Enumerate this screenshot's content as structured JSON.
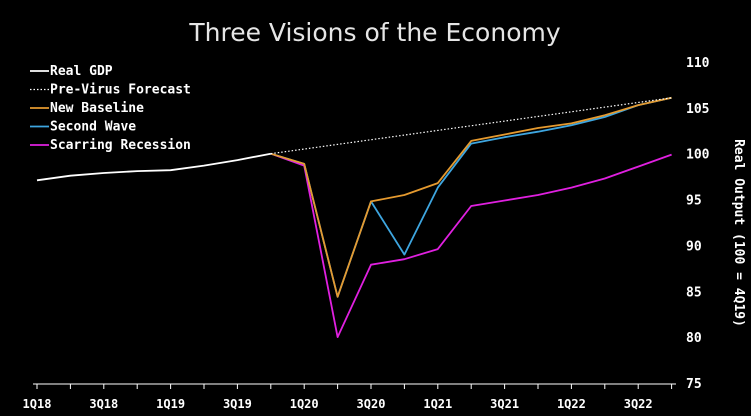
{
  "chart_data": {
    "type": "line",
    "title": "Three Visions of the Economy",
    "ylabel": "Real Output (100 = 4Q19)",
    "ylim": [
      75,
      110
    ],
    "yticks": [
      75,
      80,
      85,
      90,
      95,
      100,
      105,
      110
    ],
    "y_axis_side": "right",
    "legend_position": "top-left",
    "grid": false,
    "x_quarters": [
      "1Q18",
      "2Q18",
      "3Q18",
      "4Q18",
      "1Q19",
      "2Q19",
      "3Q19",
      "4Q19",
      "1Q20",
      "2Q20",
      "3Q20",
      "4Q20",
      "1Q21",
      "2Q21",
      "3Q21",
      "4Q21",
      "1Q22",
      "2Q22",
      "3Q22",
      "4Q22"
    ],
    "x_tick_labels": [
      "1Q18",
      "3Q18",
      "1Q19",
      "3Q19",
      "1Q20",
      "3Q20",
      "1Q21",
      "3Q21",
      "1Q22",
      "3Q22"
    ],
    "series": [
      {
        "name": "Real GDP",
        "color": "#ffffff",
        "style": "solid",
        "x": [
          "1Q18",
          "2Q18",
          "3Q18",
          "4Q18",
          "1Q19",
          "2Q19",
          "3Q19",
          "4Q19"
        ],
        "values": [
          97.1,
          97.6,
          97.9,
          98.1,
          98.2,
          98.7,
          99.3,
          100.0
        ]
      },
      {
        "name": "Pre-Virus Forecast",
        "color": "#ffffff",
        "style": "dotted",
        "x": [
          "4Q19",
          "4Q22"
        ],
        "values": [
          100.0,
          106.1
        ]
      },
      {
        "name": "New Baseline",
        "color": "#e59a2f",
        "style": "solid",
        "x": [
          "4Q19",
          "1Q20",
          "2Q20",
          "3Q20",
          "4Q20",
          "1Q21",
          "2Q21",
          "3Q21",
          "4Q21",
          "1Q22",
          "2Q22",
          "3Q22",
          "4Q22"
        ],
        "values": [
          100.0,
          98.9,
          84.4,
          94.8,
          95.5,
          96.8,
          101.4,
          102.1,
          102.8,
          103.3,
          104.2,
          105.3,
          106.1
        ]
      },
      {
        "name": "Second Wave",
        "color": "#3ea6e0",
        "style": "solid",
        "x": [
          "4Q19",
          "1Q20",
          "2Q20",
          "3Q20",
          "4Q20",
          "1Q21",
          "2Q21",
          "3Q21",
          "4Q21",
          "1Q22",
          "2Q22",
          "3Q22",
          "4Q22"
        ],
        "values": [
          100.0,
          98.9,
          84.4,
          94.8,
          89.0,
          96.3,
          101.1,
          101.8,
          102.4,
          103.1,
          104.0,
          105.3,
          106.1
        ]
      },
      {
        "name": "Scarring Recession",
        "color": "#e020e0",
        "style": "solid",
        "x": [
          "4Q19",
          "1Q20",
          "2Q20",
          "3Q20",
          "4Q20",
          "1Q21",
          "2Q21",
          "3Q21",
          "4Q21",
          "1Q22",
          "2Q22",
          "3Q22",
          "4Q22"
        ],
        "values": [
          100.0,
          98.7,
          80.0,
          87.9,
          88.5,
          89.6,
          94.3,
          94.9,
          95.5,
          96.3,
          97.3,
          98.6,
          99.9
        ]
      }
    ]
  }
}
